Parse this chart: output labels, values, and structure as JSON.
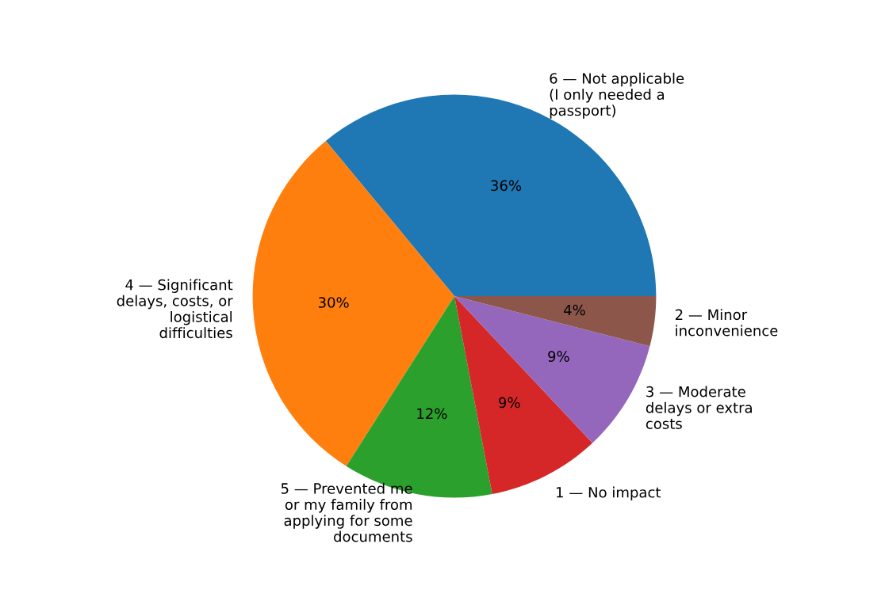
{
  "chart_data": {
    "type": "pie",
    "categories": [
      "6 — Not applicable\n(I only needed a\npassport)",
      "4 — Significant\ndelays, costs, or\nlogistical\ndifficulties",
      "5 — Prevented me\nor my family from\napplying for some\ndocuments",
      "1 — No impact",
      "3 — Moderate\ndelays or extra\ncosts",
      "2 — Minor\ninconvenience"
    ],
    "values": [
      36,
      30,
      12,
      9,
      9,
      4
    ],
    "colors": [
      "#1f77b4",
      "#ff7f0e",
      "#2ca02c",
      "#d62728",
      "#9467bd",
      "#8c564b"
    ],
    "value_labels": [
      "36%",
      "30%",
      "12%",
      "9%",
      "9%",
      "4%"
    ]
  }
}
